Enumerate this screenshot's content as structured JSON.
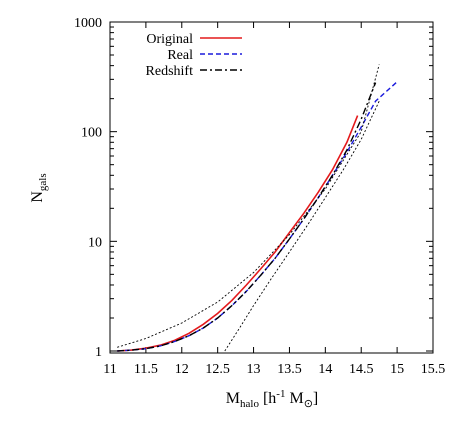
{
  "chart_data": {
    "type": "line",
    "xlabel": {
      "main": "M",
      "sub": "halo",
      "mid": " [h",
      "sup": "-1",
      "tail": " M",
      "sun_sub": "⊙",
      "close": "]"
    },
    "ylabel": {
      "main": "N",
      "sub": "gals"
    },
    "xlim": [
      11,
      15.5
    ],
    "ylim": [
      0.9,
      1000
    ],
    "y_scale": "log",
    "x_ticks": [
      {
        "value": 11,
        "label": "11"
      },
      {
        "value": 11.5,
        "label": "11.5"
      },
      {
        "value": 12,
        "label": "12"
      },
      {
        "value": 12.5,
        "label": "12.5"
      },
      {
        "value": 13,
        "label": "13"
      },
      {
        "value": 13.5,
        "label": "13.5"
      },
      {
        "value": 14,
        "label": "14"
      },
      {
        "value": 14.5,
        "label": "14.5"
      },
      {
        "value": 15,
        "label": "15"
      },
      {
        "value": 15.5,
        "label": "15.5"
      }
    ],
    "y_ticks": [
      {
        "value": 1,
        "label": "1"
      },
      {
        "value": 10,
        "label": "10"
      },
      {
        "value": 100,
        "label": "100"
      },
      {
        "value": 1000,
        "label": "1000"
      }
    ],
    "grid": false,
    "legend_position": "top-left",
    "series": [
      {
        "name": "Original",
        "color": "#e41a1c",
        "style": "solid",
        "in_legend": true,
        "x": [
          11.1,
          11.3,
          11.5,
          11.7,
          11.9,
          12.1,
          12.3,
          12.5,
          12.7,
          12.9,
          13.1,
          13.3,
          13.5,
          13.7,
          13.9,
          14.1,
          14.3,
          14.45
        ],
        "y": [
          1.0,
          1.02,
          1.06,
          1.13,
          1.25,
          1.45,
          1.75,
          2.2,
          2.9,
          4.0,
          5.6,
          8.0,
          12,
          18,
          28,
          45,
          80,
          140
        ]
      },
      {
        "name": "Real",
        "color": "#1a1adc",
        "style": "dashed",
        "in_legend": true,
        "x": [
          11.1,
          11.3,
          11.5,
          11.7,
          11.9,
          12.1,
          12.3,
          12.5,
          12.7,
          12.9,
          13.1,
          13.3,
          13.5,
          13.7,
          13.9,
          14.1,
          14.3,
          14.5,
          14.7,
          15.0
        ],
        "y": [
          1.0,
          1.02,
          1.05,
          1.11,
          1.22,
          1.38,
          1.62,
          2.0,
          2.6,
          3.5,
          4.9,
          7.0,
          10.5,
          16,
          25,
          40,
          65,
          110,
          190,
          285
        ]
      },
      {
        "name": "Redshift",
        "color": "#000000",
        "style": "dashdot",
        "in_legend": true,
        "x": [
          11.1,
          11.3,
          11.5,
          11.7,
          11.9,
          12.1,
          12.3,
          12.5,
          12.7,
          12.9,
          13.1,
          13.3,
          13.5,
          13.7,
          13.9,
          14.1,
          14.3,
          14.5,
          14.7
        ],
        "y": [
          1.0,
          1.02,
          1.05,
          1.11,
          1.22,
          1.38,
          1.62,
          2.0,
          2.6,
          3.5,
          4.9,
          7.0,
          10.5,
          16,
          25,
          40,
          68,
          130,
          280
        ]
      },
      {
        "name": "",
        "color": "#000000",
        "style": "dotted",
        "in_legend": false,
        "x": [
          11.1,
          11.5,
          12.0,
          12.5,
          13.0,
          13.5,
          14.0,
          14.5,
          14.75
        ],
        "y": [
          1.08,
          1.3,
          1.8,
          2.8,
          5.2,
          11.5,
          30,
          100,
          410
        ]
      },
      {
        "name": "",
        "color": "#000000",
        "style": "dotted",
        "in_legend": false,
        "x": [
          12.6,
          12.8,
          13.0,
          13.25,
          13.5,
          13.75,
          14.0,
          14.25,
          14.5,
          14.75
        ],
        "y": [
          1.0,
          1.6,
          2.6,
          4.6,
          8.0,
          14,
          25,
          45,
          85,
          190
        ]
      }
    ]
  }
}
